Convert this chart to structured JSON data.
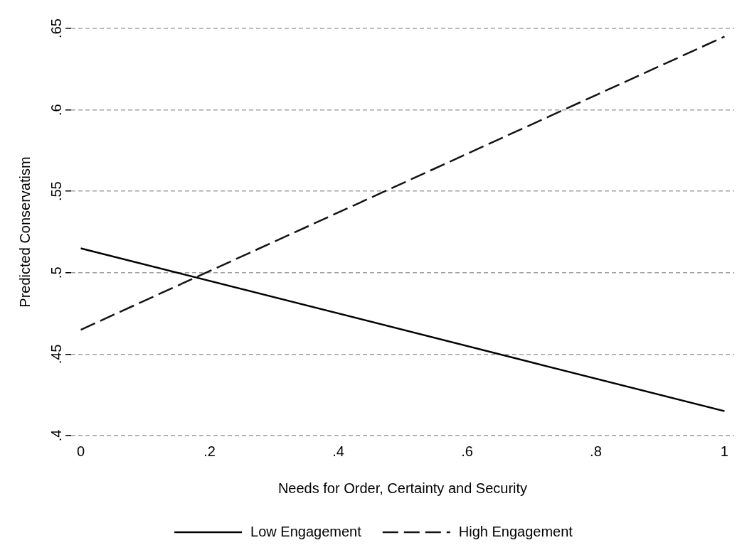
{
  "chart_data": {
    "type": "line",
    "xlabel": "Needs for Order, Certainty and Security",
    "ylabel": "Predicted Conservatism",
    "x": [
      0,
      1
    ],
    "series": [
      {
        "name": "Low Engagement",
        "color": "#000000",
        "values": [
          0.515,
          0.415
        ],
        "line_style": "solid"
      },
      {
        "name": "High Engagement",
        "color": "#141414",
        "values": [
          0.465,
          0.645
        ],
        "line_style": "dashed"
      }
    ],
    "xlim": [
      -0.015,
      1.015
    ],
    "ylim": [
      0.4,
      0.65
    ],
    "xticks": [
      0,
      {
        "value": 0.2,
        "label": ".2"
      },
      {
        "value": 0.4,
        "label": ".4"
      },
      {
        "value": 0.6,
        "label": ".6"
      },
      {
        "value": 0.8,
        "label": ".8"
      },
      1
    ],
    "yticks": [
      {
        "value": 0.4,
        "label": ".4"
      },
      {
        "value": 0.45,
        "label": ".45"
      },
      {
        "value": 0.5,
        "label": ".5"
      },
      {
        "value": 0.55,
        "label": ".55"
      },
      {
        "value": 0.6,
        "label": ".6"
      },
      {
        "value": 0.65,
        "label": ".65"
      }
    ],
    "grid": "y",
    "legend": "bottom",
    "marker": "none"
  }
}
